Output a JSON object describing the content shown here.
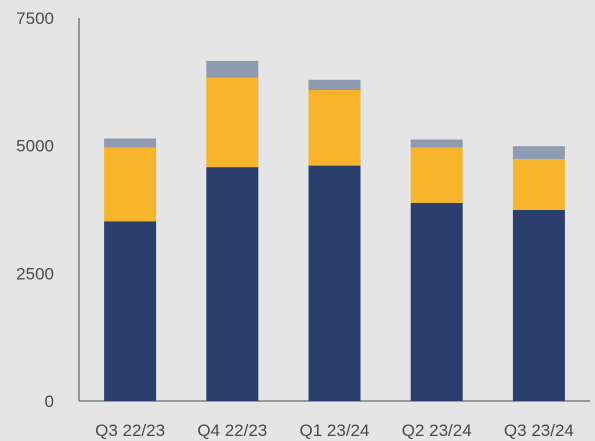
{
  "colors": {
    "background": "#e5e5e5",
    "axis": "#6b6b6b",
    "series": [
      "#2b3f6f",
      "#f7b52b",
      "#8e9bb0"
    ]
  },
  "chart_data": {
    "type": "bar",
    "stacked": true,
    "title": "",
    "xlabel": "",
    "ylabel": "",
    "categories": [
      "Q3 22/23",
      "Q4 22/23",
      "Q1 23/24",
      "Q2 23/24",
      "Q3 23/24"
    ],
    "series": [
      {
        "values": [
          3520,
          4580,
          4610,
          3880,
          3740
        ],
        "color": "#2b3f6f"
      },
      {
        "values": [
          1440,
          1750,
          1480,
          1080,
          1000
        ],
        "color": "#f7b52b"
      },
      {
        "values": [
          180,
          330,
          200,
          160,
          250
        ],
        "color": "#8e9bb0"
      }
    ],
    "ylim": [
      0,
      7500
    ],
    "yticks": [
      0,
      2500,
      5000,
      7500
    ],
    "ytick_labels": [
      "0",
      "2500",
      "5000",
      "7500"
    ],
    "grid": false,
    "legend": "none"
  }
}
